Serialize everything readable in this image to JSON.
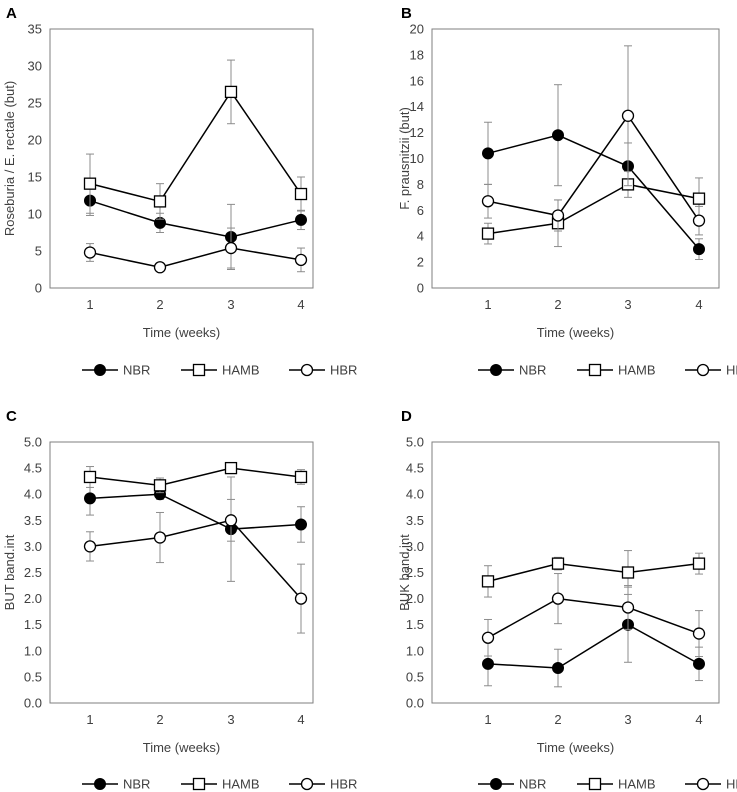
{
  "chart_data": [
    {
      "panel": "A",
      "type": "line",
      "title": "",
      "xlabel": "Time (weeks)",
      "ylabel": "Roseburia / E. rectale (but)",
      "categories": [
        "1",
        "2",
        "3",
        "4"
      ],
      "ylim": [
        0,
        35
      ],
      "ytick_step": 5,
      "yticks": [
        "0",
        "5",
        "10",
        "15",
        "20",
        "25",
        "30",
        "35"
      ],
      "series": [
        {
          "name": "NBR",
          "marker": "filled-circle",
          "values": [
            11.8,
            8.8,
            6.9,
            9.2
          ],
          "errors": [
            2.0,
            1.3,
            4.4,
            1.3
          ]
        },
        {
          "name": "HAMB",
          "marker": "open-square",
          "values": [
            14.1,
            11.7,
            26.5,
            12.7
          ],
          "errors": [
            4.0,
            2.4,
            4.3,
            2.3
          ]
        },
        {
          "name": "HBR",
          "marker": "open-circle",
          "values": [
            4.8,
            2.8,
            5.4,
            3.8
          ],
          "errors": [
            1.2,
            0.4,
            2.7,
            1.6
          ]
        }
      ]
    },
    {
      "panel": "B",
      "type": "line",
      "title": "",
      "xlabel": "Time (weeks)",
      "ylabel": "F. prausnitzii (but)",
      "categories": [
        "1",
        "2",
        "3",
        "4"
      ],
      "ylim": [
        0,
        20
      ],
      "ytick_step": 2,
      "yticks": [
        "0",
        "2",
        "4",
        "6",
        "8",
        "10",
        "12",
        "14",
        "16",
        "18",
        "20"
      ],
      "series": [
        {
          "name": "NBR",
          "marker": "filled-circle",
          "values": [
            10.4,
            11.8,
            9.4,
            3.0
          ],
          "errors": [
            2.4,
            3.9,
            1.8,
            0.8
          ]
        },
        {
          "name": "HAMB",
          "marker": "open-square",
          "values": [
            4.2,
            5.0,
            8.0,
            6.9
          ],
          "errors": [
            0.8,
            1.8,
            1.0,
            1.6
          ]
        },
        {
          "name": "HBR",
          "marker": "open-circle",
          "values": [
            6.7,
            5.6,
            13.3,
            5.2
          ],
          "errors": [
            1.3,
            1.2,
            5.4,
            1.1
          ]
        }
      ]
    },
    {
      "panel": "C",
      "type": "line",
      "title": "",
      "xlabel": "Time (weeks)",
      "ylabel": "BUT band.int",
      "categories": [
        "1",
        "2",
        "3",
        "4"
      ],
      "ylim": [
        0,
        5
      ],
      "ytick_step": 0.5,
      "yticks": [
        "0.0",
        "0.5",
        "1.0",
        "1.5",
        "2.0",
        "2.5",
        "3.0",
        "3.5",
        "4.0",
        "4.5",
        "5.0"
      ],
      "series": [
        {
          "name": "NBR",
          "marker": "filled-circle",
          "values": [
            3.92,
            4.0,
            3.33,
            3.42
          ],
          "errors": [
            0.32,
            0.1,
            1.0,
            0.34
          ]
        },
        {
          "name": "HAMB",
          "marker": "open-square",
          "values": [
            4.33,
            4.17,
            4.5,
            4.33
          ],
          "errors": [
            0.2,
            0.14,
            0.0,
            0.14
          ]
        },
        {
          "name": "HBR",
          "marker": "open-circle",
          "values": [
            3.0,
            3.17,
            3.5,
            2.0
          ],
          "errors": [
            0.28,
            0.48,
            0.4,
            0.66
          ]
        }
      ]
    },
    {
      "panel": "D",
      "type": "line",
      "title": "",
      "xlabel": "Time (weeks)",
      "ylabel": "BUK band.int",
      "categories": [
        "1",
        "2",
        "3",
        "4"
      ],
      "ylim": [
        0,
        5
      ],
      "ytick_step": 0.5,
      "yticks": [
        "0.0",
        "0.5",
        "1.0",
        "1.5",
        "2.0",
        "2.5",
        "3.0",
        "3.5",
        "4.0",
        "4.5",
        "5.0"
      ],
      "series": [
        {
          "name": "NBR",
          "marker": "filled-circle",
          "values": [
            0.75,
            0.67,
            1.5,
            0.75
          ],
          "errors": [
            0.42,
            0.36,
            0.72,
            0.32
          ]
        },
        {
          "name": "HAMB",
          "marker": "open-square",
          "values": [
            2.33,
            2.67,
            2.5,
            2.67
          ],
          "errors": [
            0.3,
            0.12,
            0.42,
            0.2
          ]
        },
        {
          "name": "HBR",
          "marker": "open-circle",
          "values": [
            1.25,
            2.0,
            1.83,
            1.33
          ],
          "errors": [
            0.35,
            0.48,
            0.42,
            0.44
          ]
        }
      ]
    }
  ]
}
